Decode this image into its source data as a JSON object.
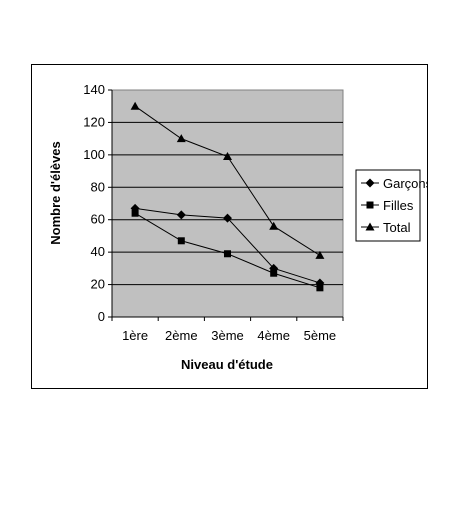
{
  "chart_data": {
    "type": "line",
    "categories": [
      "1ère",
      "2ème",
      "3ème",
      "4ème",
      "5ème"
    ],
    "series": [
      {
        "name": "Garçons",
        "marker": "diamond",
        "values": [
          67,
          63,
          61,
          30,
          21
        ]
      },
      {
        "name": "Filles",
        "marker": "square",
        "values": [
          64,
          47,
          39,
          27,
          18
        ]
      },
      {
        "name": "Total",
        "marker": "triangle",
        "values": [
          130,
          110,
          99,
          56,
          38
        ]
      }
    ],
    "xlabel": "Niveau d'étude",
    "ylabel": "Nombre d'élèves",
    "ylim": [
      0,
      140
    ],
    "yticks": [
      0,
      20,
      40,
      60,
      80,
      100,
      120,
      140
    ],
    "grid": true,
    "legend": "right",
    "colors": {
      "plot_bg": "#c0c0c0",
      "line": "#000000",
      "grid": "#000000"
    }
  }
}
